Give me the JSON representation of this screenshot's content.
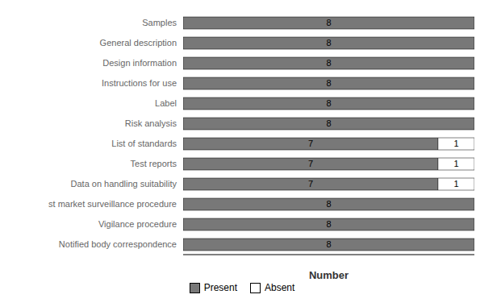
{
  "chart_data": {
    "type": "bar",
    "orientation": "horizontal",
    "stacked": true,
    "categories": [
      "Samples",
      "General description",
      "Design information",
      "Instructions for use",
      "Label",
      "Risk analysis",
      "List of standards",
      "Test reports",
      "Data on handling suitability",
      "st market surveillance procedure",
      "Vigilance procedure",
      "Notified body correspondence"
    ],
    "series": [
      {
        "name": "Present",
        "color": "#787878",
        "values": [
          8,
          8,
          8,
          8,
          8,
          8,
          7,
          7,
          7,
          8,
          8,
          8
        ]
      },
      {
        "name": "Absent",
        "color": "#ffffff",
        "values": [
          0,
          0,
          0,
          0,
          0,
          0,
          1,
          1,
          1,
          0,
          0,
          0
        ]
      }
    ],
    "xlabel": "Number",
    "xlim": [
      0,
      8
    ],
    "tick_labels": "y",
    "data_labels": true,
    "legend": "bottom",
    "grid": false
  }
}
